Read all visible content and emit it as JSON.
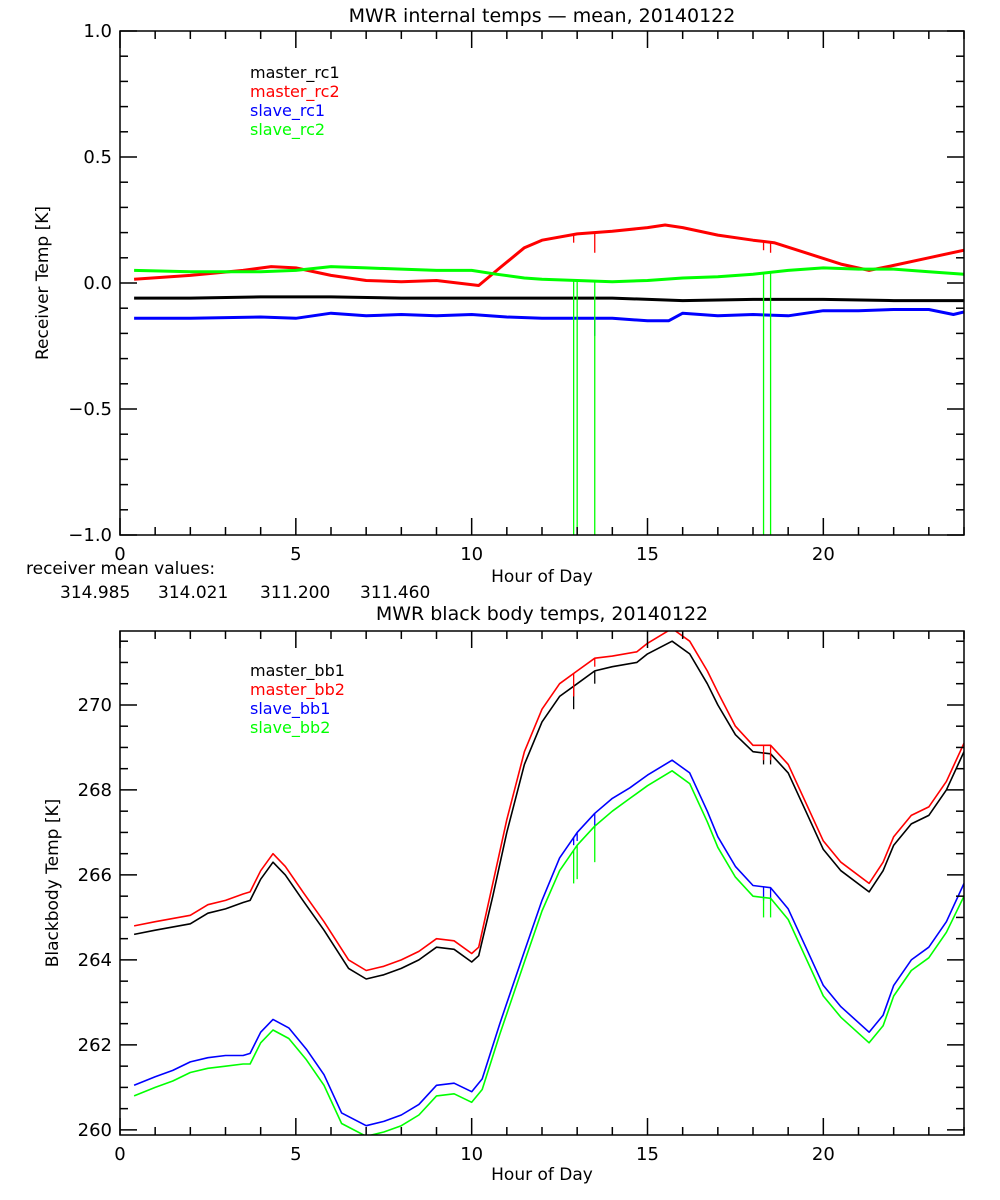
{
  "chart_data": [
    {
      "type": "line",
      "title": "MWR internal temps — mean, 20140122",
      "xlabel": "Hour of Day",
      "ylabel": "Receiver Temp [K]",
      "xlim": [
        0,
        24
      ],
      "ylim": [
        -1.0,
        1.0
      ],
      "x_ticks": [
        0,
        5,
        10,
        15,
        20
      ],
      "x_tick_labels": [
        "0",
        "5",
        "10",
        "15",
        "20"
      ],
      "x_minor_step": 1,
      "y_ticks": [
        -1.0,
        -0.5,
        0.0,
        0.5,
        1.0
      ],
      "y_tick_labels": [
        "−1.0",
        "−0.5",
        "0.0",
        "0.5",
        "1.0"
      ],
      "y_minor_step": 0.1,
      "grid": false,
      "legend_placement": "top-left",
      "series": [
        {
          "name": "master_rc1",
          "color": "#000000",
          "x": [
            0.4,
            2,
            4,
            6,
            8,
            10,
            12,
            14,
            16,
            18,
            20,
            22,
            24
          ],
          "y": [
            -0.06,
            -0.06,
            -0.055,
            -0.055,
            -0.06,
            -0.06,
            -0.06,
            -0.06,
            -0.07,
            -0.065,
            -0.065,
            -0.07,
            -0.07
          ]
        },
        {
          "name": "master_rc2",
          "color": "#ff0000",
          "x": [
            0.4,
            2,
            3.5,
            4.3,
            5,
            6,
            7,
            8,
            9,
            9.6,
            10.2,
            10.8,
            11.5,
            12,
            13,
            14,
            15,
            15.5,
            16,
            17,
            18,
            18.6,
            19.5,
            20.5,
            21.3,
            22,
            23,
            24
          ],
          "y": [
            0.015,
            0.03,
            0.05,
            0.065,
            0.06,
            0.03,
            0.01,
            0.005,
            0.01,
            0.0,
            -0.01,
            0.06,
            0.14,
            0.17,
            0.195,
            0.205,
            0.22,
            0.23,
            0.22,
            0.19,
            0.17,
            0.16,
            0.12,
            0.075,
            0.05,
            0.07,
            0.1,
            0.13
          ],
          "spikes": [
            {
              "x": 12.9,
              "to": 0.16
            },
            {
              "x": 13.5,
              "to": 0.12
            },
            {
              "x": 18.3,
              "to": 0.13
            },
            {
              "x": 18.5,
              "to": 0.12
            }
          ]
        },
        {
          "name": "slave_rc1",
          "color": "#0000ff",
          "x": [
            0.4,
            2,
            4,
            5,
            6,
            7,
            8,
            9,
            10,
            11,
            12,
            13,
            14,
            15,
            15.6,
            16,
            17,
            18,
            19,
            20,
            21,
            22,
            23,
            23.7,
            24
          ],
          "y": [
            -0.14,
            -0.14,
            -0.135,
            -0.14,
            -0.12,
            -0.13,
            -0.125,
            -0.13,
            -0.125,
            -0.135,
            -0.14,
            -0.14,
            -0.14,
            -0.15,
            -0.15,
            -0.12,
            -0.13,
            -0.125,
            -0.13,
            -0.11,
            -0.11,
            -0.105,
            -0.105,
            -0.125,
            -0.115
          ],
          "spikes": [
            {
              "x": 13.5,
              "to": -0.21
            }
          ]
        },
        {
          "name": "slave_rc2",
          "color": "#00ff00",
          "x": [
            0.4,
            2,
            4,
            5,
            6,
            7,
            8,
            9,
            10,
            10.7,
            11.5,
            12,
            13,
            14,
            15,
            16,
            17,
            18,
            19,
            20,
            21,
            22,
            23,
            24
          ],
          "y": [
            0.05,
            0.045,
            0.045,
            0.05,
            0.065,
            0.06,
            0.055,
            0.05,
            0.05,
            0.035,
            0.02,
            0.015,
            0.01,
            0.005,
            0.01,
            0.02,
            0.025,
            0.035,
            0.05,
            0.06,
            0.055,
            0.055,
            0.045,
            0.035
          ],
          "spikes": [
            {
              "x": 12.9,
              "to": -1.0
            },
            {
              "x": 13.0,
              "to": -1.0
            },
            {
              "x": 13.5,
              "to": -1.0
            },
            {
              "x": 18.3,
              "to": -1.0
            },
            {
              "x": 18.5,
              "to": -1.0
            }
          ]
        }
      ],
      "annotations": {
        "label": "receiver mean values:",
        "values": [
          {
            "text": "314.985",
            "color": "#000000"
          },
          {
            "text": "314.021",
            "color": "#ff0000"
          },
          {
            "text": "311.200",
            "color": "#0000ff"
          },
          {
            "text": "311.460",
            "color": "#00ff00"
          }
        ]
      }
    },
    {
      "type": "line",
      "title": "MWR black body temps, 20140122",
      "xlabel": "Hour of Day",
      "ylabel": "Blackbody Temp [K]",
      "xlim": [
        0,
        24
      ],
      "ylim": [
        259.88,
        271.74
      ],
      "x_ticks": [
        0,
        5,
        10,
        15,
        20
      ],
      "x_tick_labels": [
        "0",
        "5",
        "10",
        "15",
        "20"
      ],
      "x_minor_step": 1,
      "y_ticks": [
        260,
        262,
        264,
        266,
        268,
        270
      ],
      "y_tick_labels": [
        "260",
        "262",
        "264",
        "266",
        "268",
        "270"
      ],
      "y_minor_step": 0.5,
      "grid": false,
      "legend_placement": "top-left",
      "series": [
        {
          "name": "master_bb1",
          "color": "#000000",
          "x": [
            0.4,
            1,
            2,
            2.5,
            3,
            3.5,
            3.7,
            4.0,
            4.35,
            4.7,
            5.2,
            5.8,
            6.5,
            7.0,
            7.5,
            8.0,
            8.5,
            9.0,
            9.5,
            10.0,
            10.2,
            10.6,
            11.0,
            11.5,
            12.0,
            12.5,
            13.0,
            13.5,
            14.0,
            14.7,
            15.0,
            15.7,
            16.2,
            16.7,
            17.0,
            17.5,
            18.0,
            18.5,
            19.0,
            19.5,
            20.0,
            20.5,
            21.3,
            21.7,
            22.0,
            22.5,
            23.0,
            23.5,
            24.0
          ],
          "y": [
            264.6,
            264.7,
            264.85,
            265.1,
            265.2,
            265.35,
            265.4,
            265.9,
            266.3,
            266.0,
            265.4,
            264.7,
            263.8,
            263.55,
            263.65,
            263.8,
            264.0,
            264.3,
            264.25,
            263.95,
            264.1,
            265.5,
            267.0,
            268.6,
            269.6,
            270.2,
            270.5,
            270.8,
            270.9,
            271.0,
            271.2,
            271.5,
            271.2,
            270.5,
            270.0,
            269.3,
            268.9,
            268.85,
            268.4,
            267.5,
            266.6,
            266.1,
            265.6,
            266.1,
            266.7,
            267.2,
            267.4,
            268.0,
            268.9
          ],
          "spikes": [
            {
              "x": 12.9,
              "to": 269.9
            },
            {
              "x": 13.5,
              "to": 270.5
            },
            {
              "x": 18.3,
              "to": 268.6
            },
            {
              "x": 18.5,
              "to": 268.6
            }
          ]
        },
        {
          "name": "master_bb2",
          "color": "#ff0000",
          "x": [
            0.4,
            1,
            2,
            2.5,
            3,
            3.5,
            3.7,
            4.0,
            4.35,
            4.7,
            5.2,
            5.8,
            6.5,
            7.0,
            7.5,
            8.0,
            8.5,
            9.0,
            9.5,
            10.0,
            10.2,
            10.6,
            11.0,
            11.5,
            12.0,
            12.5,
            13.0,
            13.5,
            14.0,
            14.7,
            15.0,
            15.7,
            16.2,
            16.7,
            17.0,
            17.5,
            18.0,
            18.5,
            19.0,
            19.5,
            20.0,
            20.5,
            21.3,
            21.7,
            22.0,
            22.5,
            23.0,
            23.5,
            24.0
          ],
          "y": [
            264.8,
            264.9,
            265.05,
            265.3,
            265.4,
            265.55,
            265.6,
            266.1,
            266.5,
            266.2,
            265.6,
            264.9,
            264.0,
            263.75,
            263.85,
            264.0,
            264.2,
            264.5,
            264.45,
            264.15,
            264.3,
            265.8,
            267.3,
            268.9,
            269.9,
            270.5,
            270.8,
            271.1,
            271.15,
            271.25,
            271.45,
            271.8,
            271.5,
            270.8,
            270.3,
            269.5,
            269.05,
            269.05,
            268.6,
            267.7,
            266.8,
            266.3,
            265.8,
            266.3,
            266.9,
            267.4,
            267.6,
            268.2,
            269.1
          ],
          "spikes": [
            {
              "x": 12.9,
              "to": 270.2
            },
            {
              "x": 13.5,
              "to": 270.9
            },
            {
              "x": 18.3,
              "to": 268.7
            },
            {
              "x": 18.5,
              "to": 268.7
            }
          ]
        },
        {
          "name": "slave_bb1",
          "color": "#0000ff",
          "x": [
            0.4,
            1,
            1.5,
            2,
            2.5,
            3,
            3.5,
            3.7,
            4.0,
            4.35,
            4.8,
            5.3,
            5.8,
            6.3,
            7.0,
            7.5,
            8.0,
            8.5,
            9.0,
            9.5,
            10.0,
            10.3,
            10.8,
            11.5,
            12.0,
            12.5,
            13.0,
            13.5,
            14.0,
            14.5,
            15.0,
            15.7,
            16.2,
            16.7,
            17.0,
            17.5,
            18.0,
            18.5,
            19.0,
            19.5,
            20.0,
            20.5,
            21.3,
            21.7,
            22.0,
            22.5,
            23.0,
            23.5,
            24.0
          ],
          "y": [
            261.05,
            261.25,
            261.4,
            261.6,
            261.7,
            261.75,
            261.75,
            261.8,
            262.3,
            262.6,
            262.4,
            261.9,
            261.3,
            260.4,
            260.1,
            260.2,
            260.35,
            260.6,
            261.05,
            261.1,
            260.9,
            261.2,
            262.5,
            264.2,
            265.4,
            266.4,
            267.0,
            267.45,
            267.8,
            268.05,
            268.35,
            268.7,
            268.4,
            267.5,
            266.9,
            266.2,
            265.75,
            265.7,
            265.2,
            264.3,
            263.4,
            262.9,
            262.3,
            262.7,
            263.4,
            264.0,
            264.3,
            264.9,
            265.8
          ],
          "spikes": [
            {
              "x": 12.9,
              "to": 266.7
            },
            {
              "x": 13.0,
              "to": 266.8
            },
            {
              "x": 13.5,
              "to": 267.1
            },
            {
              "x": 18.3,
              "to": 265.4
            },
            {
              "x": 18.5,
              "to": 265.4
            }
          ]
        },
        {
          "name": "slave_bb2",
          "color": "#00ff00",
          "x": [
            0.4,
            1,
            1.5,
            2,
            2.5,
            3,
            3.5,
            3.7,
            4.0,
            4.35,
            4.8,
            5.3,
            5.8,
            6.3,
            7.0,
            7.5,
            8.0,
            8.5,
            9.0,
            9.5,
            10.0,
            10.3,
            10.8,
            11.5,
            12.0,
            12.5,
            13.0,
            13.5,
            14.0,
            14.5,
            15.0,
            15.7,
            16.2,
            16.7,
            17.0,
            17.5,
            18.0,
            18.5,
            19.0,
            19.5,
            20.0,
            20.5,
            21.3,
            21.7,
            22.0,
            22.5,
            23.0,
            23.5,
            24.0
          ],
          "y": [
            260.8,
            261.0,
            261.15,
            261.35,
            261.45,
            261.5,
            261.55,
            261.55,
            262.05,
            262.35,
            262.15,
            261.65,
            261.05,
            260.15,
            259.85,
            259.95,
            260.1,
            260.35,
            260.8,
            260.85,
            260.65,
            260.95,
            262.25,
            263.95,
            265.15,
            266.1,
            266.7,
            267.15,
            267.5,
            267.8,
            268.1,
            268.45,
            268.15,
            267.25,
            266.65,
            265.95,
            265.5,
            265.45,
            264.95,
            264.05,
            263.15,
            262.65,
            262.05,
            262.45,
            263.15,
            263.75,
            264.05,
            264.65,
            265.5
          ],
          "spikes": [
            {
              "x": 12.9,
              "to": 265.8
            },
            {
              "x": 13.0,
              "to": 265.9
            },
            {
              "x": 13.5,
              "to": 266.3
            },
            {
              "x": 18.3,
              "to": 265.0
            },
            {
              "x": 18.5,
              "to": 265.0
            }
          ]
        }
      ]
    }
  ]
}
